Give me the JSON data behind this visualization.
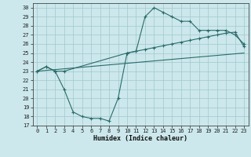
{
  "xlabel": "Humidex (Indice chaleur)",
  "xlim": [
    -0.5,
    23.5
  ],
  "ylim": [
    17,
    30.5
  ],
  "xticks": [
    0,
    1,
    2,
    3,
    4,
    5,
    6,
    7,
    8,
    9,
    10,
    11,
    12,
    13,
    14,
    15,
    16,
    17,
    18,
    19,
    20,
    21,
    22,
    23
  ],
  "yticks": [
    17,
    18,
    19,
    20,
    21,
    22,
    23,
    24,
    25,
    26,
    27,
    28,
    29,
    30
  ],
  "bg_color": "#cce8ec",
  "grid_color": "#a0c8cc",
  "line_color": "#2a6b6a",
  "line1_x": [
    0,
    1,
    2,
    3,
    4,
    5,
    6,
    7,
    8,
    9,
    10,
    11,
    12,
    13,
    14,
    15,
    16,
    17,
    18,
    19,
    20,
    21,
    22,
    23
  ],
  "line1_y": [
    23,
    23.5,
    23,
    21,
    18.5,
    18,
    17.8,
    17.8,
    17.5,
    20,
    25,
    25.2,
    29,
    30,
    29.5,
    29,
    28.5,
    28.5,
    27.5,
    27.5,
    27.5,
    27.5,
    27,
    26
  ],
  "line2_x": [
    0,
    1,
    2,
    3,
    10,
    11,
    12,
    13,
    14,
    15,
    16,
    17,
    18,
    19,
    20,
    21,
    22,
    23
  ],
  "line2_y": [
    23,
    23.5,
    23,
    23,
    25,
    25.2,
    25.4,
    25.6,
    25.8,
    26.0,
    26.2,
    26.4,
    26.6,
    26.8,
    27.0,
    27.2,
    27.3,
    25.7
  ],
  "line3_x": [
    0,
    23
  ],
  "line3_y": [
    23,
    25
  ]
}
